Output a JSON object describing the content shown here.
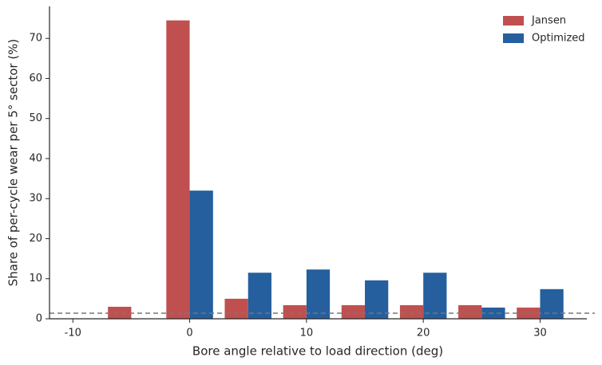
{
  "chart_data": {
    "type": "bar",
    "x_label": "Bore angle relative to load direction (deg)",
    "y_label": "Share of per-cycle wear per 5° sector (%)",
    "x": [
      -5,
      0,
      5,
      10,
      15,
      20,
      25,
      30
    ],
    "series": [
      {
        "name": "Jansen",
        "color": "#c0504f",
        "values": [
          3.0,
          74.5,
          5.0,
          3.4,
          3.4,
          3.4,
          3.4,
          2.8
        ]
      },
      {
        "name": "Optimized",
        "color": "#255f9e",
        "values": [
          null,
          32.0,
          11.5,
          12.3,
          9.6,
          11.5,
          2.8,
          7.4
        ]
      }
    ],
    "reference_line": 1.4,
    "xlim": [
      -12,
      34
    ],
    "xticks": [
      -10,
      0,
      10,
      20,
      30
    ],
    "ylim": [
      0,
      78
    ],
    "yticks": [
      0,
      10,
      20,
      30,
      40,
      50,
      60,
      70
    ],
    "legend": "upper right",
    "grid": false
  }
}
